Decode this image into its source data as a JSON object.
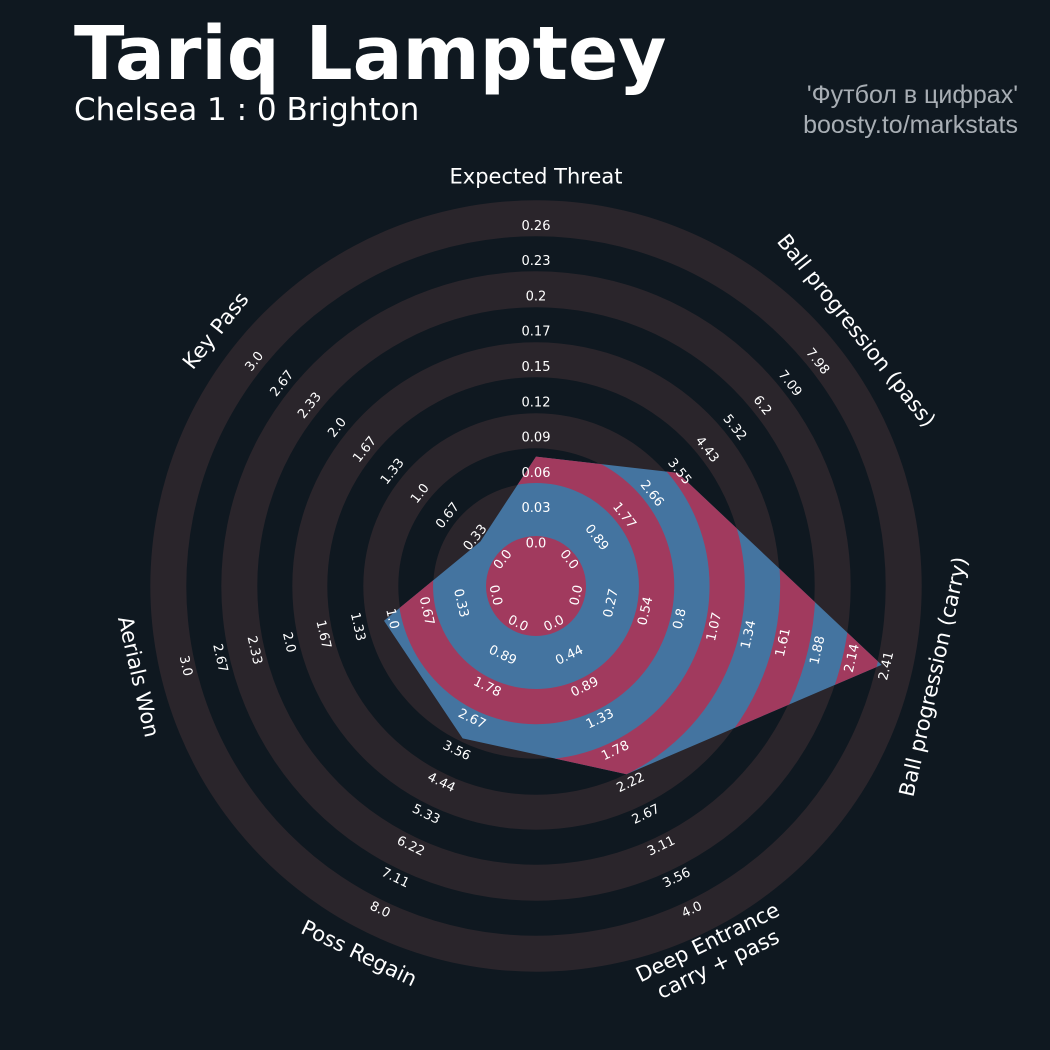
{
  "header": {
    "player_name": "Tariq Lamptey",
    "match": "Chelsea 1 : 0 Brighton"
  },
  "credit": {
    "line1": "'Футбол в цифрах'",
    "line2": "boosty.to/markstats"
  },
  "colors": {
    "background": "#0f1820",
    "ring": "#2a252b",
    "polygon_blue": "#4474a0",
    "polygon_red": "#a13a5e",
    "text": "#ffffff",
    "credit": "#a8aeb4"
  },
  "chart_data": {
    "type": "radar",
    "title": "Tariq Lamptey",
    "subtitle": "Chelsea 1 : 0 Brighton",
    "params": [
      {
        "name": "Expected Threat",
        "value": 0.065,
        "ticks": [
          "0.0",
          "0.03",
          "0.06",
          "0.09",
          "0.12",
          "0.15",
          "0.17",
          "0.2",
          "0.23",
          "0.26"
        ]
      },
      {
        "name": "Ball progression (pass)",
        "value": 3.3,
        "ticks": [
          "0.0",
          "0.89",
          "1.77",
          "2.66",
          "3.55",
          "4.43",
          "5.32",
          "6.2",
          "7.09",
          "7.98"
        ]
      },
      {
        "name": "Ball progression (carry)",
        "value": 2.31,
        "ticks": [
          "0.0",
          "0.27",
          "0.54",
          "0.8",
          "1.07",
          "1.34",
          "1.61",
          "1.88",
          "2.14",
          "2.41"
        ]
      },
      {
        "name": "Deep Entrance\ncarry + pass",
        "value": 2.0,
        "ticks": [
          "0.0",
          "0.44",
          "0.89",
          "1.33",
          "1.78",
          "2.22",
          "2.67",
          "3.11",
          "3.56",
          "4.0"
        ]
      },
      {
        "name": "Poss Regain",
        "value": 3.0,
        "ticks": [
          "0.0",
          "0.89",
          "1.78",
          "2.67",
          "3.56",
          "4.44",
          "5.33",
          "6.22",
          "7.11",
          "8.0"
        ]
      },
      {
        "name": "Aerials Won",
        "value": 1.0,
        "ticks": [
          "0.0",
          "0.33",
          "0.67",
          "1.0",
          "1.33",
          "1.67",
          "2.0",
          "2.33",
          "2.67",
          "3.0"
        ]
      },
      {
        "name": "Key Pass",
        "value": 0.2,
        "ticks": [
          "0.0",
          "0.33",
          "0.67",
          "1.0",
          "1.33",
          "1.67",
          "2.0",
          "2.33",
          "2.67",
          "3.0"
        ]
      }
    ]
  }
}
